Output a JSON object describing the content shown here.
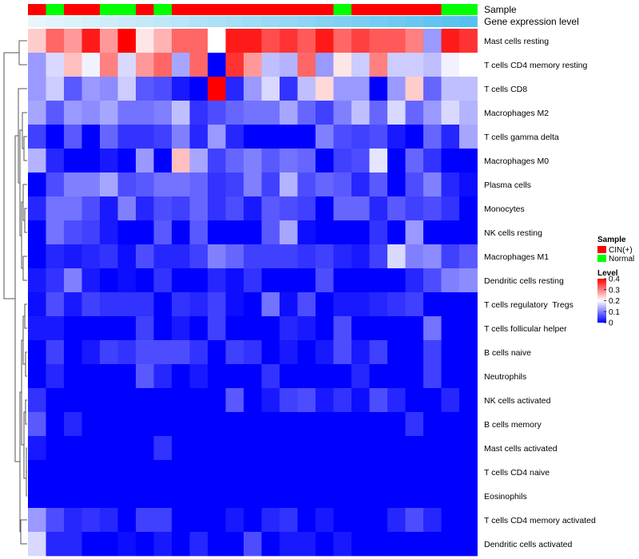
{
  "chart_data": {
    "type": "heatmap",
    "title": "",
    "annotations": {
      "sample_label": "Sample",
      "expression_label": "Gene expression level",
      "sample_groups": [
        "CIN(+)",
        "Normal",
        "CIN(+)",
        "CIN(+)",
        "Normal",
        "Normal",
        "CIN(+)",
        "Normal",
        "CIN(+)",
        "CIN(+)",
        "CIN(+)",
        "CIN(+)",
        "CIN(+)",
        "CIN(+)",
        "CIN(+)",
        "CIN(+)",
        "CIN(+)",
        "Normal",
        "CIN(+)",
        "CIN(+)",
        "CIN(+)",
        "CIN(+)",
        "CIN(+)",
        "Normal",
        "Normal"
      ],
      "expression_level": [
        0.0,
        0.04,
        0.08,
        0.12,
        0.17,
        0.21,
        0.25,
        0.29,
        0.33,
        0.37,
        0.42,
        0.46,
        0.5,
        0.54,
        0.58,
        0.62,
        0.67,
        0.71,
        0.75,
        0.79,
        0.83,
        0.87,
        0.92,
        0.96,
        1.0
      ]
    },
    "rows": [
      "Mast cells resting",
      "T cells CD4 memory resting",
      "T cells CD8",
      "Macrophages M2",
      "T cells gamma delta",
      "Macrophages M0",
      "Plasma cells",
      "Monocytes",
      "NK cells resting",
      "Macrophages M1",
      "Dendritic cells resting",
      "T cells regulatory  Tregs",
      "T cells follicular helper",
      "B cells naive",
      "Neutrophils",
      "NK cells activated",
      "B cells memory",
      "Mast cells activated",
      "T cells CD4 naive",
      "Eosinophils",
      "T cells CD4 memory activated",
      "Dendritic cells activated"
    ],
    "values": [
      [
        0.24,
        0.32,
        0.28,
        0.38,
        0.28,
        0.4,
        0.22,
        0.26,
        0.32,
        0.32,
        0.2,
        0.38,
        0.38,
        0.34,
        0.36,
        0.33,
        0.38,
        0.32,
        0.35,
        0.33,
        0.33,
        0.3,
        0.12,
        0.38,
        0.36
      ],
      [
        0.12,
        0.17,
        0.25,
        0.19,
        0.3,
        0.17,
        0.28,
        0.32,
        0.13,
        0.32,
        0.0,
        0.36,
        0.28,
        0.15,
        0.14,
        0.32,
        0.12,
        0.22,
        0.16,
        0.3,
        0.16,
        0.16,
        0.15,
        0.19,
        0.2
      ],
      [
        0.12,
        0.16,
        0.07,
        0.12,
        0.11,
        0.16,
        0.07,
        0.06,
        0.02,
        0.0,
        0.4,
        0.03,
        0.12,
        0.17,
        0.04,
        0.15,
        0.23,
        0.12,
        0.12,
        0.0,
        0.12,
        0.24,
        0.08,
        0.15,
        0.15
      ],
      [
        0.13,
        0.07,
        0.12,
        0.11,
        0.13,
        0.09,
        0.09,
        0.1,
        0.15,
        0.04,
        0.06,
        0.08,
        0.09,
        0.09,
        0.13,
        0.08,
        0.05,
        0.1,
        0.15,
        0.08,
        0.17,
        0.08,
        0.12,
        0.17,
        0.14
      ],
      [
        0.05,
        0.0,
        0.07,
        0.0,
        0.08,
        0.04,
        0.04,
        0.05,
        0.1,
        0.03,
        0.12,
        0.03,
        0.0,
        0.0,
        0.0,
        0.0,
        0.1,
        0.06,
        0.05,
        0.06,
        0.02,
        0.0,
        0.08,
        0.03,
        0.13
      ],
      [
        0.14,
        0.03,
        0.0,
        0.0,
        0.02,
        0.0,
        0.12,
        0.0,
        0.25,
        0.13,
        0.05,
        0.08,
        0.1,
        0.07,
        0.09,
        0.08,
        0.0,
        0.05,
        0.06,
        0.18,
        0.0,
        0.08,
        0.04,
        0.0,
        0.0
      ],
      [
        0.0,
        0.06,
        0.1,
        0.1,
        0.13,
        0.06,
        0.07,
        0.09,
        0.09,
        0.08,
        0.04,
        0.05,
        0.1,
        0.05,
        0.14,
        0.06,
        0.08,
        0.07,
        0.03,
        0.07,
        0.0,
        0.06,
        0.1,
        0.03,
        0.01
      ],
      [
        0.03,
        0.09,
        0.09,
        0.06,
        0.02,
        0.1,
        0.03,
        0.06,
        0.05,
        0.08,
        0.04,
        0.06,
        0.02,
        0.07,
        0.06,
        0.05,
        0.0,
        0.08,
        0.08,
        0.03,
        0.07,
        0.05,
        0.06,
        0.04,
        0.0
      ],
      [
        0.0,
        0.09,
        0.06,
        0.05,
        0.02,
        0.0,
        0.0,
        0.07,
        0.0,
        0.07,
        0.0,
        0.0,
        0.0,
        0.07,
        0.13,
        0.01,
        0.0,
        0.0,
        0.0,
        0.04,
        0.0,
        0.12,
        0.0,
        0.0,
        0.0
      ],
      [
        0.0,
        0.03,
        0.02,
        0.03,
        0.04,
        0.01,
        0.06,
        0.03,
        0.03,
        0.05,
        0.1,
        0.08,
        0.05,
        0.05,
        0.05,
        0.04,
        0.05,
        0.03,
        0.02,
        0.05,
        0.17,
        0.1,
        0.11,
        0.05,
        0.07
      ],
      [
        0.02,
        0.04,
        0.1,
        0.02,
        0.0,
        0.01,
        0.0,
        0.04,
        0.0,
        0.0,
        0.03,
        0.01,
        0.04,
        0.0,
        0.0,
        0.0,
        0.06,
        0.0,
        0.0,
        0.0,
        0.0,
        0.03,
        0.06,
        0.1,
        0.11
      ],
      [
        0.01,
        0.06,
        0.02,
        0.05,
        0.04,
        0.04,
        0.04,
        0.0,
        0.04,
        0.03,
        0.05,
        0.01,
        0.0,
        0.09,
        0.01,
        0.06,
        0.0,
        0.02,
        0.02,
        0.03,
        0.04,
        0.05,
        0.0,
        0.0,
        0.0
      ],
      [
        0.02,
        0.02,
        0.0,
        0.0,
        0.0,
        0.0,
        0.05,
        0.0,
        0.02,
        0.0,
        0.05,
        0.0,
        0.0,
        0.0,
        0.03,
        0.02,
        0.0,
        0.06,
        0.0,
        0.0,
        0.0,
        0.0,
        0.09,
        0.0,
        0.0
      ],
      [
        0.0,
        0.05,
        0.0,
        0.02,
        0.05,
        0.04,
        0.06,
        0.06,
        0.06,
        0.04,
        0.0,
        0.05,
        0.04,
        0.0,
        0.02,
        0.0,
        0.02,
        0.06,
        0.02,
        0.05,
        0.0,
        0.0,
        0.05,
        0.0,
        0.0
      ],
      [
        0.0,
        0.03,
        0.0,
        0.0,
        0.0,
        0.0,
        0.07,
        0.03,
        0.0,
        0.02,
        0.0,
        0.0,
        0.0,
        0.04,
        0.0,
        0.0,
        0.0,
        0.0,
        0.03,
        0.0,
        0.0,
        0.0,
        0.05,
        0.0,
        0.0
      ],
      [
        0.04,
        0.0,
        0.0,
        0.0,
        0.0,
        0.0,
        0.0,
        0.0,
        0.0,
        0.0,
        0.0,
        0.07,
        0.0,
        0.02,
        0.05,
        0.06,
        0.02,
        0.04,
        0.01,
        0.06,
        0.03,
        0.0,
        0.0,
        0.03,
        0.0
      ],
      [
        0.07,
        0.0,
        0.03,
        0.0,
        0.0,
        0.0,
        0.0,
        0.0,
        0.0,
        0.0,
        0.0,
        0.0,
        0.0,
        0.0,
        0.0,
        0.0,
        0.0,
        0.0,
        0.0,
        0.0,
        0.0,
        0.04,
        0.0,
        0.0,
        0.0
      ],
      [
        0.02,
        0.0,
        0.0,
        0.0,
        0.0,
        0.0,
        0.0,
        0.04,
        0.0,
        0.0,
        0.0,
        0.0,
        0.0,
        0.0,
        0.0,
        0.0,
        0.0,
        0.0,
        0.0,
        0.0,
        0.0,
        0.0,
        0.0,
        0.0,
        0.0
      ],
      [
        0.0,
        0.0,
        0.0,
        0.0,
        0.0,
        0.0,
        0.0,
        0.0,
        0.0,
        0.0,
        0.0,
        0.0,
        0.0,
        0.0,
        0.0,
        0.0,
        0.0,
        0.0,
        0.0,
        0.0,
        0.0,
        0.0,
        0.0,
        0.0,
        0.0
      ],
      [
        0.0,
        0.0,
        0.0,
        0.0,
        0.0,
        0.0,
        0.0,
        0.0,
        0.0,
        0.0,
        0.0,
        0.0,
        0.0,
        0.0,
        0.0,
        0.0,
        0.0,
        0.0,
        0.0,
        0.0,
        0.0,
        0.0,
        0.0,
        0.0,
        0.0
      ],
      [
        0.12,
        0.06,
        0.03,
        0.04,
        0.03,
        0.0,
        0.05,
        0.05,
        0.0,
        0.0,
        0.0,
        0.02,
        0.0,
        0.03,
        0.04,
        0.0,
        0.02,
        0.0,
        0.0,
        0.0,
        0.03,
        0.06,
        0.03,
        0.0,
        0.0
      ],
      [
        0.17,
        0.03,
        0.03,
        0.0,
        0.0,
        0.01,
        0.0,
        0.02,
        0.0,
        0.03,
        0.0,
        0.0,
        0.06,
        0.0,
        0.02,
        0.02,
        0.0,
        0.02,
        0.0,
        0.0,
        0.0,
        0.0,
        0.0,
        0.0,
        0.0
      ]
    ],
    "scale": {
      "min": 0,
      "max": 0.4,
      "ticks": [
        0.4,
        0.3,
        0.2,
        0.1,
        0
      ],
      "tick_labels": [
        "0.4",
        "0.3",
        "0.2",
        "0.1",
        "0"
      ]
    },
    "legend": {
      "sample_title": "Sample",
      "sample_items": [
        {
          "label": "CIN(+)",
          "color": "#ff0000"
        },
        {
          "label": "Normal",
          "color": "#00ff00"
        }
      ],
      "level_title": "Level",
      "placement": "right"
    },
    "colors": {
      "low": "#0000ff",
      "mid": "#ffffff",
      "high": "#ff0000",
      "expr_low": "#e8f6fb",
      "expr_high": "#56c1ef",
      "dendrogram": "#555555"
    }
  }
}
